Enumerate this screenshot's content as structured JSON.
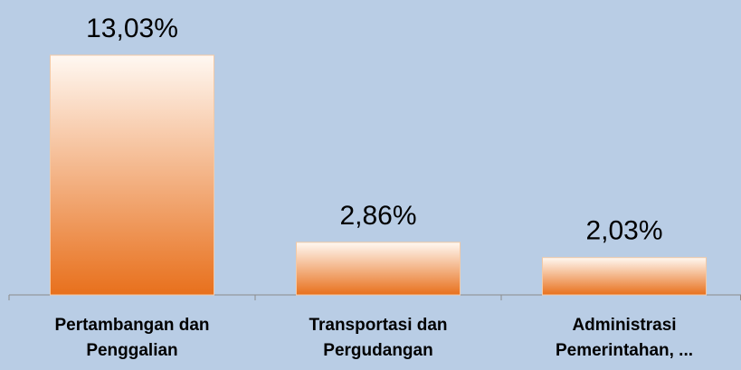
{
  "chart_data": {
    "type": "bar",
    "categories": [
      "Pertambangan dan Penggalian",
      "Transportasi dan Pergudangan",
      "Administrasi Pemerintahan, ..."
    ],
    "values": [
      13.03,
      2.86,
      2.03
    ],
    "value_labels": [
      "13,03%",
      "2,86%",
      "2,03%"
    ],
    "color": "#e8701c"
  }
}
